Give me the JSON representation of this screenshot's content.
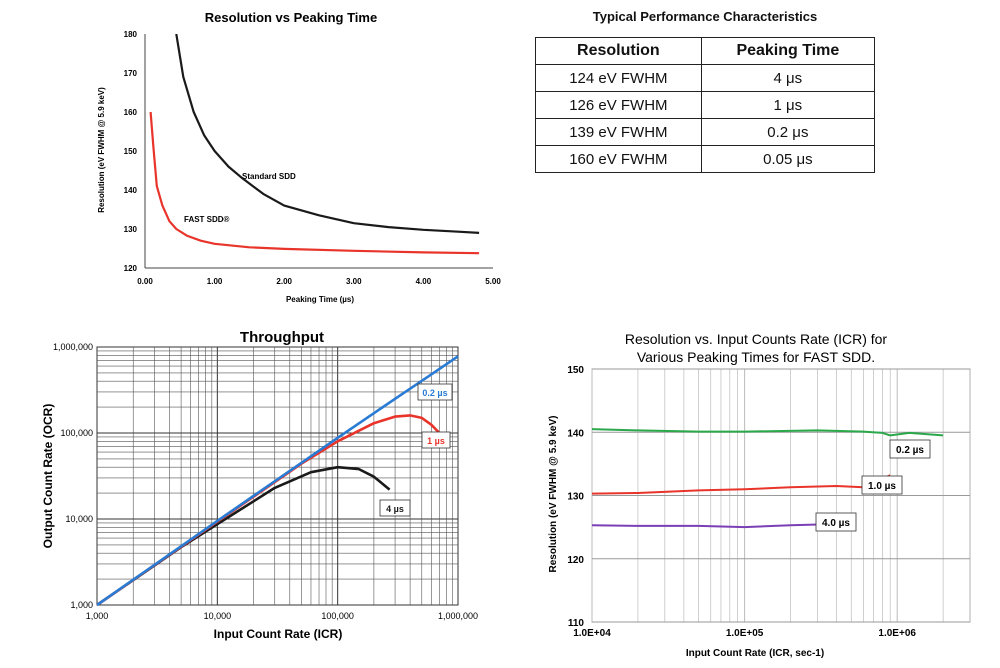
{
  "colors": {
    "black": "#1a1a1a",
    "red": "#e8342a",
    "blue": "#2a7bd4",
    "green": "#2aa84a",
    "purple": "#7b3fb5",
    "grid": "#c8c8c8"
  },
  "table": {
    "title": "Typical Performance Characteristics",
    "headers": [
      "Resolution",
      "Peaking Time"
    ],
    "rows": [
      [
        "124 eV FWHM",
        "4 μs"
      ],
      [
        "126 eV FWHM",
        "1 μs"
      ],
      [
        "139 eV FWHM",
        "0.2 μs"
      ],
      [
        "160 eV FWHM",
        "0.05 μs"
      ]
    ]
  },
  "chart_data": [
    {
      "type": "line",
      "title": "Resolution vs Peaking Time",
      "xlabel": "Peaking Time (µs)",
      "ylabel": "Resolution (eV FWHM @ 5.9 keV)",
      "xlim": [
        0,
        5
      ],
      "ylim": [
        120,
        180
      ],
      "xticks": [
        "0.00",
        "1.00",
        "2.00",
        "3.00",
        "4.00",
        "5.00"
      ],
      "yticks": [
        "120",
        "130",
        "140",
        "150",
        "160",
        "170",
        "180"
      ],
      "grid": false,
      "series": [
        {
          "name": "Standard SDD",
          "color": "#1a1a1a",
          "x": [
            0.45,
            0.55,
            0.7,
            0.85,
            1.0,
            1.2,
            1.4,
            1.7,
            2.0,
            2.5,
            3.0,
            3.5,
            4.0,
            4.5,
            4.8
          ],
          "y": [
            180,
            169,
            160,
            154,
            150,
            146,
            143,
            139,
            136,
            133.5,
            131.5,
            130.5,
            129.8,
            129.3,
            129
          ]
        },
        {
          "name": "FAST SDD®",
          "color": "#e8342a",
          "x": [
            0.08,
            0.12,
            0.17,
            0.25,
            0.35,
            0.45,
            0.6,
            0.8,
            1.0,
            1.5,
            2.0,
            3.0,
            4.0,
            4.8
          ],
          "y": [
            160,
            151,
            141,
            136,
            132,
            130,
            128.3,
            127,
            126.2,
            125.3,
            124.9,
            124.4,
            124,
            123.8
          ]
        }
      ]
    },
    {
      "type": "line",
      "title": "Throughput",
      "xlabel": "Input Count Rate (ICR)",
      "ylabel": "Output Count Rate (OCR)",
      "xscale": "log",
      "yscale": "log",
      "xlim": [
        1000,
        1000000
      ],
      "ylim": [
        1000,
        1000000
      ],
      "xticks": [
        "1,000",
        "10,000",
        "100,000",
        "1,000,000"
      ],
      "yticks": [
        "1,000",
        "10,000",
        "100,000",
        "1,000,000"
      ],
      "grid": true,
      "series": [
        {
          "name": "0.2 µs",
          "color": "#2a7bd4",
          "x": [
            1000,
            10000,
            100000,
            300000,
            600000,
            1000000
          ],
          "y": [
            1000,
            9500,
            88000,
            250000,
            480000,
            780000
          ]
        },
        {
          "name": "1 µs",
          "color": "#e8342a",
          "x": [
            1000,
            10000,
            50000,
            100000,
            200000,
            300000,
            400000,
            500000,
            600000,
            700000
          ],
          "y": [
            1000,
            9300,
            44000,
            80000,
            130000,
            155000,
            160000,
            150000,
            125000,
            100000
          ]
        },
        {
          "name": "4 µs",
          "color": "#1a1a1a",
          "x": [
            1000,
            5000,
            10000,
            30000,
            60000,
            100000,
            150000,
            200000,
            270000
          ],
          "y": [
            1000,
            4700,
            8700,
            23000,
            35000,
            40000,
            38000,
            31000,
            22000
          ]
        }
      ]
    },
    {
      "type": "line",
      "title": "Resolution vs. Input Counts Rate (ICR) for Various Peaking Times for FAST SDD.",
      "xlabel": "Input Count Rate (ICR, sec-1)",
      "ylabel": "Resolution (eV FWHM @ 5.9 keV)",
      "xscale": "log",
      "xlim": [
        10000,
        3000000
      ],
      "ylim": [
        110,
        150
      ],
      "xticks": [
        "1.0E+04",
        "1.0E+05",
        "1.0E+06"
      ],
      "yticks": [
        "110",
        "120",
        "130",
        "140",
        "150"
      ],
      "grid": true,
      "series": [
        {
          "name": "0.2 µs",
          "color": "#2aa84a",
          "x": [
            10000,
            20000,
            50000,
            100000,
            300000,
            600000,
            800000,
            900000,
            1200000,
            2000000
          ],
          "y": [
            140.5,
            140.3,
            140.1,
            140.1,
            140.3,
            140.1,
            139.9,
            139.5,
            139.9,
            139.5
          ]
        },
        {
          "name": "1.0 µs",
          "color": "#e8342a",
          "x": [
            10000,
            20000,
            50000,
            100000,
            200000,
            400000,
            600000,
            900000
          ],
          "y": [
            130.3,
            130.4,
            130.8,
            131,
            131.3,
            131.5,
            131.3,
            133.2
          ]
        },
        {
          "name": "4.0 µs",
          "color": "#7b3fb5",
          "x": [
            10000,
            20000,
            50000,
            100000,
            200000,
            400000
          ],
          "y": [
            125.3,
            125.2,
            125.2,
            125,
            125.3,
            125.5
          ]
        }
      ]
    }
  ]
}
